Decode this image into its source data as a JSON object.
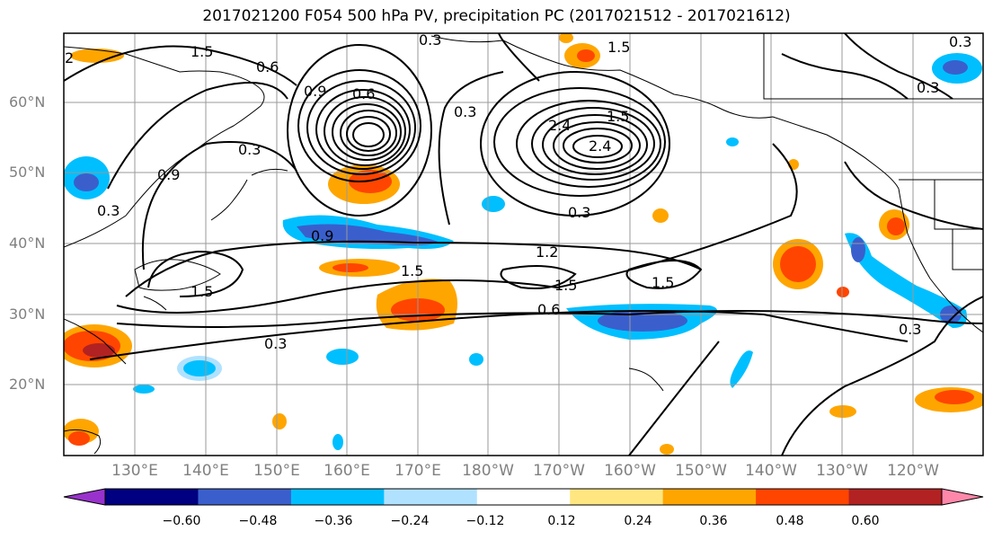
{
  "title": "2017021200 F054 500 hPa PV, precipitation PC (2017021512 - 2017021612)",
  "lat_labels": [
    "60°N",
    "50°N",
    "40°N",
    "30°N",
    "20°N"
  ],
  "lon_labels": [
    "130°E",
    "140°E",
    "150°E",
    "160°E",
    "170°E",
    "180°W",
    "170°W",
    "160°W",
    "150°W",
    "140°W",
    "130°W",
    "120°W"
  ],
  "colorbar": {
    "ticks": [
      "−0.60",
      "−0.48",
      "−0.36",
      "−0.24",
      "−0.12",
      "0.12",
      "0.24",
      "0.36",
      "0.48",
      "0.60"
    ],
    "colors": [
      "#9932cc",
      "#000080",
      "#3a5fcd",
      "#00bfff",
      "#b0e2ff",
      "#ffffff",
      "#ffe680",
      "#ffa500",
      "#ff4500",
      "#b22222",
      "#ff88aa"
    ]
  },
  "contour_labels": [
    "1.5",
    "0.3",
    "1.5",
    "2",
    "0.6",
    "0.3",
    "1.5",
    "0.3",
    "0.6",
    "0.9",
    "2.4",
    "0.3",
    "2.4",
    "0.3",
    "0.9",
    "0.3",
    "0.9",
    "1.2",
    "1.5",
    "1.5",
    "1.5",
    "1.5",
    "0.6",
    "0.3",
    "0.3",
    "0.3"
  ]
}
